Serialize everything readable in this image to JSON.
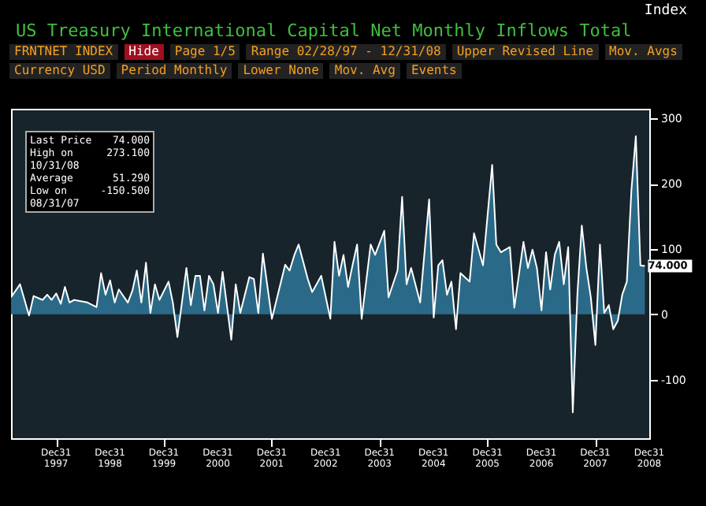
{
  "chart_data": {
    "type": "area",
    "title": "US Treasury International Capital Net Monthly Inflows Total",
    "x": [
      "1997-03",
      "1997-05",
      "1997-07",
      "1997-08",
      "1997-10",
      "1997-11",
      "1997-12",
      "1998-01",
      "1998-02",
      "1998-03",
      "1998-04",
      "1998-05",
      "1998-08",
      "1998-10",
      "1998-11",
      "1998-12",
      "1999-01",
      "1999-02",
      "1999-03",
      "1999-05",
      "1999-06",
      "1999-07",
      "1999-08",
      "1999-09",
      "1999-10",
      "1999-11",
      "1999-12",
      "2000-02",
      "2000-03",
      "2000-04",
      "2000-06",
      "2000-07",
      "2000-08",
      "2000-09",
      "2000-10",
      "2000-11",
      "2000-12",
      "2001-01",
      "2001-02",
      "2001-04",
      "2001-05",
      "2001-06",
      "2001-08",
      "2001-09",
      "2001-10",
      "2001-11",
      "2002-01",
      "2002-04",
      "2002-05",
      "2002-06",
      "2002-07",
      "2002-09",
      "2002-10",
      "2002-12",
      "2003-02",
      "2003-03",
      "2003-04",
      "2003-05",
      "2003-06",
      "2003-07",
      "2003-08",
      "2003-09",
      "2003-11",
      "2003-12",
      "2004-02",
      "2004-03",
      "2004-05",
      "2004-06",
      "2004-07",
      "2004-08",
      "2004-10",
      "2004-12",
      "2005-01",
      "2005-02",
      "2005-03",
      "2005-04",
      "2005-05",
      "2005-06",
      "2005-07",
      "2005-09",
      "2005-10",
      "2005-12",
      "2006-02",
      "2006-03",
      "2006-04",
      "2006-06",
      "2006-07",
      "2006-09",
      "2006-10",
      "2006-11",
      "2006-12",
      "2007-01",
      "2007-02",
      "2007-03",
      "2007-04",
      "2007-05",
      "2007-06",
      "2007-07",
      "2007-08",
      "2007-09",
      "2007-10",
      "2007-11",
      "2007-12",
      "2008-01",
      "2008-02",
      "2008-03",
      "2008-04",
      "2008-05",
      "2008-06",
      "2008-07",
      "2008-08",
      "2008-09",
      "2008-10",
      "2008-11",
      "2008-12"
    ],
    "series": [
      {
        "color": "#2a6a88",
        "values": [
          26,
          46,
          -2,
          28,
          22,
          30,
          22,
          32,
          16,
          42,
          18,
          22,
          18,
          11,
          63,
          30,
          52,
          18,
          38,
          18,
          36,
          67,
          18,
          79,
          2,
          46,
          22,
          50,
          18,
          -35,
          71,
          14,
          59,
          59,
          6,
          59,
          46,
          2,
          65,
          -39,
          46,
          2,
          57,
          54,
          2,
          93,
          -7,
          76,
          67,
          90,
          107,
          54,
          34,
          59,
          -7,
          111,
          59,
          91,
          42,
          75,
          107,
          -7,
          107,
          91,
          128,
          26,
          67,
          180,
          46,
          71,
          18,
          176,
          -5,
          75,
          83,
          30,
          50,
          -23,
          63,
          50,
          124,
          75,
          229,
          107,
          95,
          103,
          10,
          111,
          71,
          99,
          71,
          6,
          95,
          38,
          91,
          111,
          46,
          103,
          -150.5,
          30,
          136,
          71,
          26,
          -47,
          107,
          2,
          14,
          -23,
          -10,
          30,
          50,
          190,
          273.1,
          75,
          74
        ]
      }
    ],
    "xlim": [
      "1997-03-01",
      "2008-12-31"
    ],
    "xticks": [
      {
        "value": "1997-12-31",
        "label": "Dec31\n1997"
      },
      {
        "value": "1998-12-31",
        "label": "Dec31\n1998"
      },
      {
        "value": "1999-12-31",
        "label": "Dec31\n1999"
      },
      {
        "value": "2000-12-31",
        "label": "Dec31\n2000"
      },
      {
        "value": "2001-12-31",
        "label": "Dec31\n2001"
      },
      {
        "value": "2002-12-31",
        "label": "Dec31\n2002"
      },
      {
        "value": "2003-12-31",
        "label": "Dec31\n2003"
      },
      {
        "value": "2004-12-31",
        "label": "Dec31\n2004"
      },
      {
        "value": "2005-12-31",
        "label": "Dec31\n2005"
      },
      {
        "value": "2006-12-31",
        "label": "Dec31\n2006"
      },
      {
        "value": "2007-12-31",
        "label": "Dec31\n2007"
      },
      {
        "value": "2008-12-31",
        "label": "Dec31\n2008"
      }
    ],
    "ylim": [
      -190,
      315
    ],
    "yticks": [
      -100,
      0,
      100,
      200,
      300
    ],
    "annotations": [
      "Last Price 74.000",
      "High on 10/31/08 273.100",
      "Average 51.290",
      "Low on 08/31/07 -150.500",
      {
        "text": "74.000",
        "x": "2008-12",
        "y": 74
      },
      "Index",
      "FRNTNET INDEX",
      "Hide",
      "Page 1/5",
      "Range 02/28/97 - 12/31/08",
      "Upper Revised Line",
      "Mov. Avgs",
      "Currency USD",
      "Period Monthly",
      "Lower None",
      "Mov. Avg",
      "Events"
    ]
  }
}
